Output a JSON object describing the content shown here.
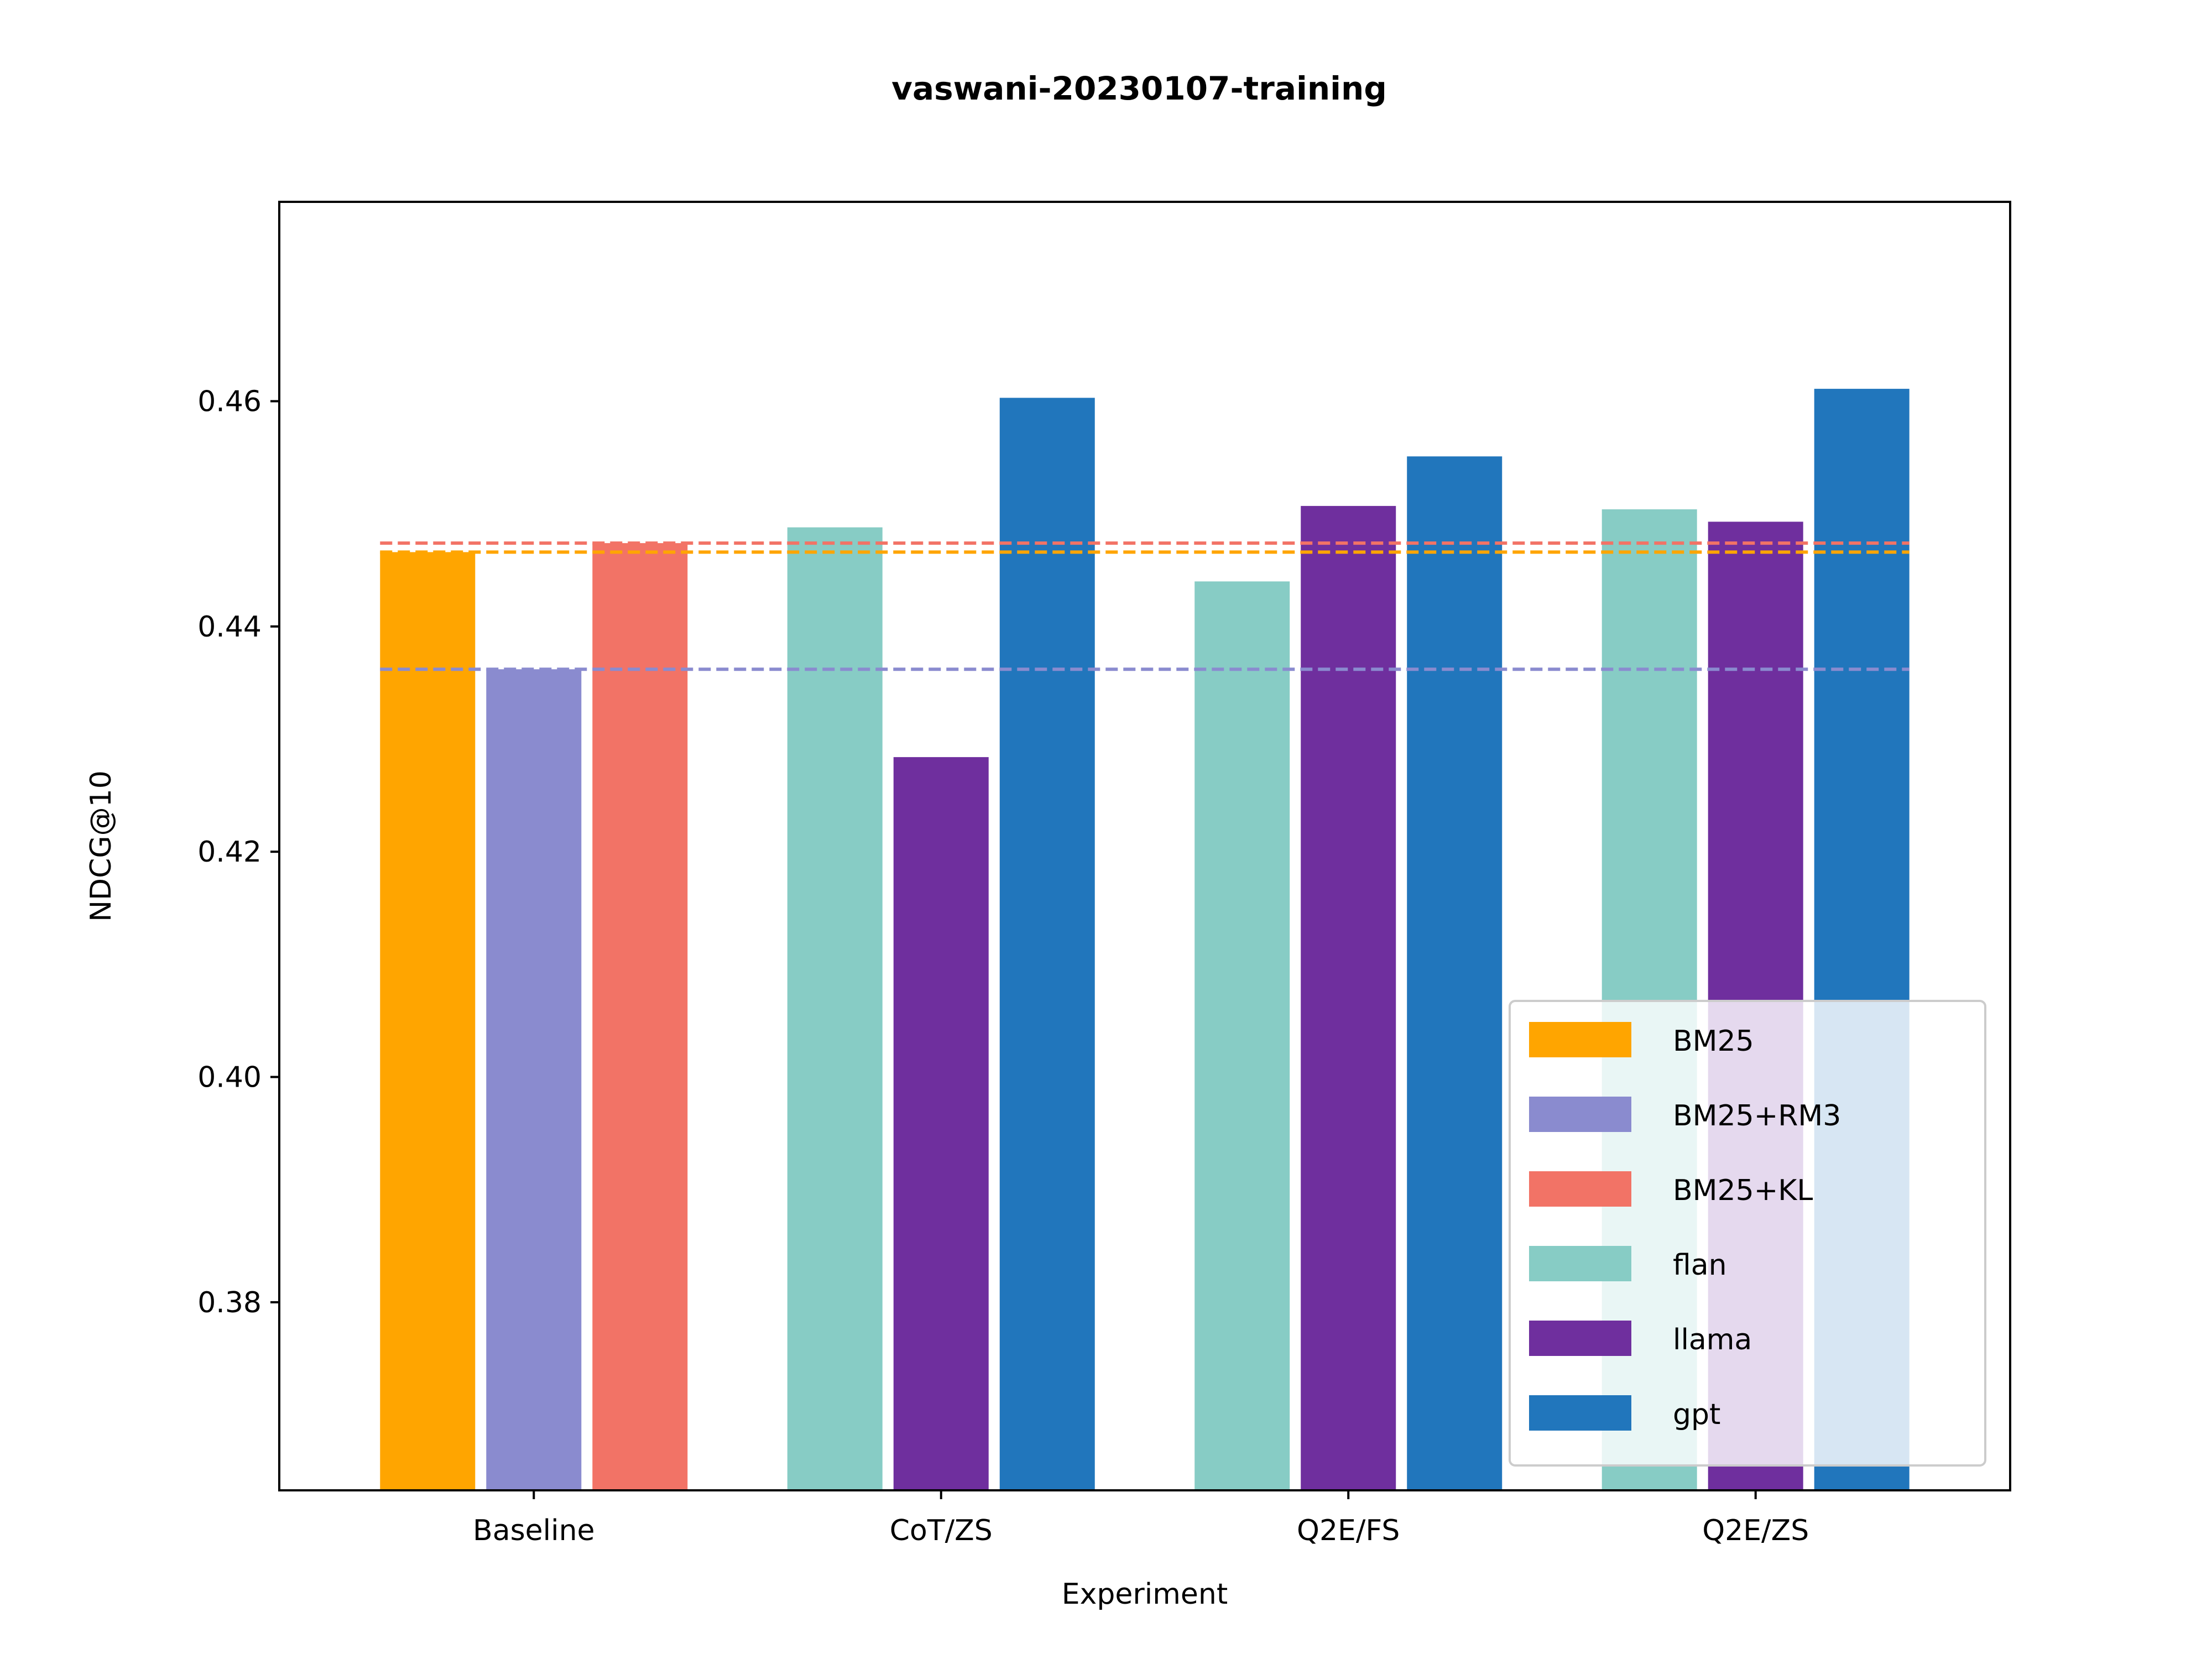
{
  "chart_data": {
    "type": "bar",
    "title": "vaswani-20230107-training",
    "xlabel": "Experiment",
    "ylabel": "NDCG@10",
    "ylim": [
      0.3633,
      0.4777
    ],
    "yticks": [
      "0.38",
      "0.40",
      "0.42",
      "0.44",
      "0.46"
    ],
    "ytick_values": [
      0.38,
      0.4,
      0.42,
      0.44,
      0.46
    ],
    "categories": [
      "Baseline",
      "CoT/ZS",
      "Q2E/FS",
      "Q2E/ZS"
    ],
    "grid": false,
    "legend_position": "lower-right",
    "series": [
      {
        "name": "BM25",
        "color": "#FFA500",
        "values": [
          0.4466,
          null,
          null,
          null
        ]
      },
      {
        "name": "BM25+RM3",
        "color": "#8A8BCF",
        "values": [
          0.4362,
          null,
          null,
          null
        ]
      },
      {
        "name": "BM25+KL",
        "color": "#F27366",
        "values": [
          0.4474,
          null,
          null,
          null
        ]
      },
      {
        "name": "flan",
        "color": "#87CCC5",
        "values": [
          null,
          0.4488,
          0.444,
          0.4504
        ]
      },
      {
        "name": "llama",
        "color": "#6F2F9E",
        "values": [
          null,
          0.4284,
          0.4507,
          0.4493
        ]
      },
      {
        "name": "gpt",
        "color": "#2176BC",
        "values": [
          null,
          0.4603,
          0.4551,
          0.4611
        ]
      }
    ],
    "reference_lines": [
      {
        "series": "BM25",
        "value": 0.4466,
        "color": "#FFA500",
        "style": "dashed"
      },
      {
        "series": "BM25+RM3",
        "value": 0.4362,
        "color": "#8A8BCF",
        "style": "dashed"
      },
      {
        "series": "BM25+KL",
        "value": 0.4474,
        "color": "#F27366",
        "style": "dashed"
      }
    ]
  }
}
